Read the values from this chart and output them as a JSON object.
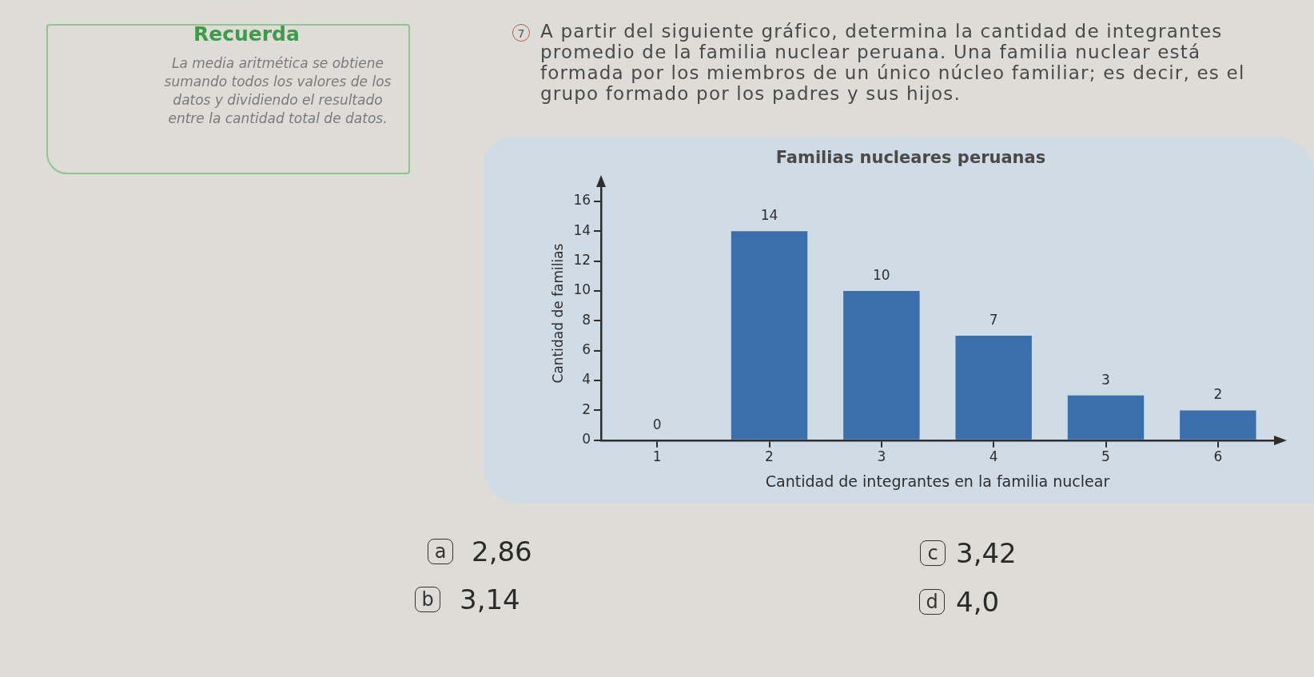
{
  "chart_data": {
    "type": "bar",
    "title": "Familias nucleares peruanas",
    "xlabel": "Cantidad de integrantes en la familia nuclear",
    "ylabel": "Cantidad de familias",
    "categories": [
      "1",
      "2",
      "3",
      "4",
      "5",
      "6"
    ],
    "values": [
      0,
      14,
      10,
      7,
      3,
      2
    ],
    "color": "#3a6fab",
    "ylim": [
      0,
      17
    ],
    "yticks": [
      0,
      2,
      4,
      6,
      8,
      10,
      12,
      14,
      16
    ],
    "data_labels": true,
    "annotations": [
      "Recuerda",
      "La media aritmética se obtiene sumando todos los valores de los datos y dividiendo el resultado entre la cantidad total de datos.",
      "7",
      "A partir del siguiente gráfico, determina la cantidad de integrantes promedio de la familia nuclear peruana. Una familia nuclear está formada por los miembros de un único núcleo familiar; es decir, es el grupo formado por los padres y sus hijos.",
      "a",
      "2,86",
      "b",
      "3,14",
      "c",
      "3,42",
      "d",
      "4,0"
    ]
  }
}
